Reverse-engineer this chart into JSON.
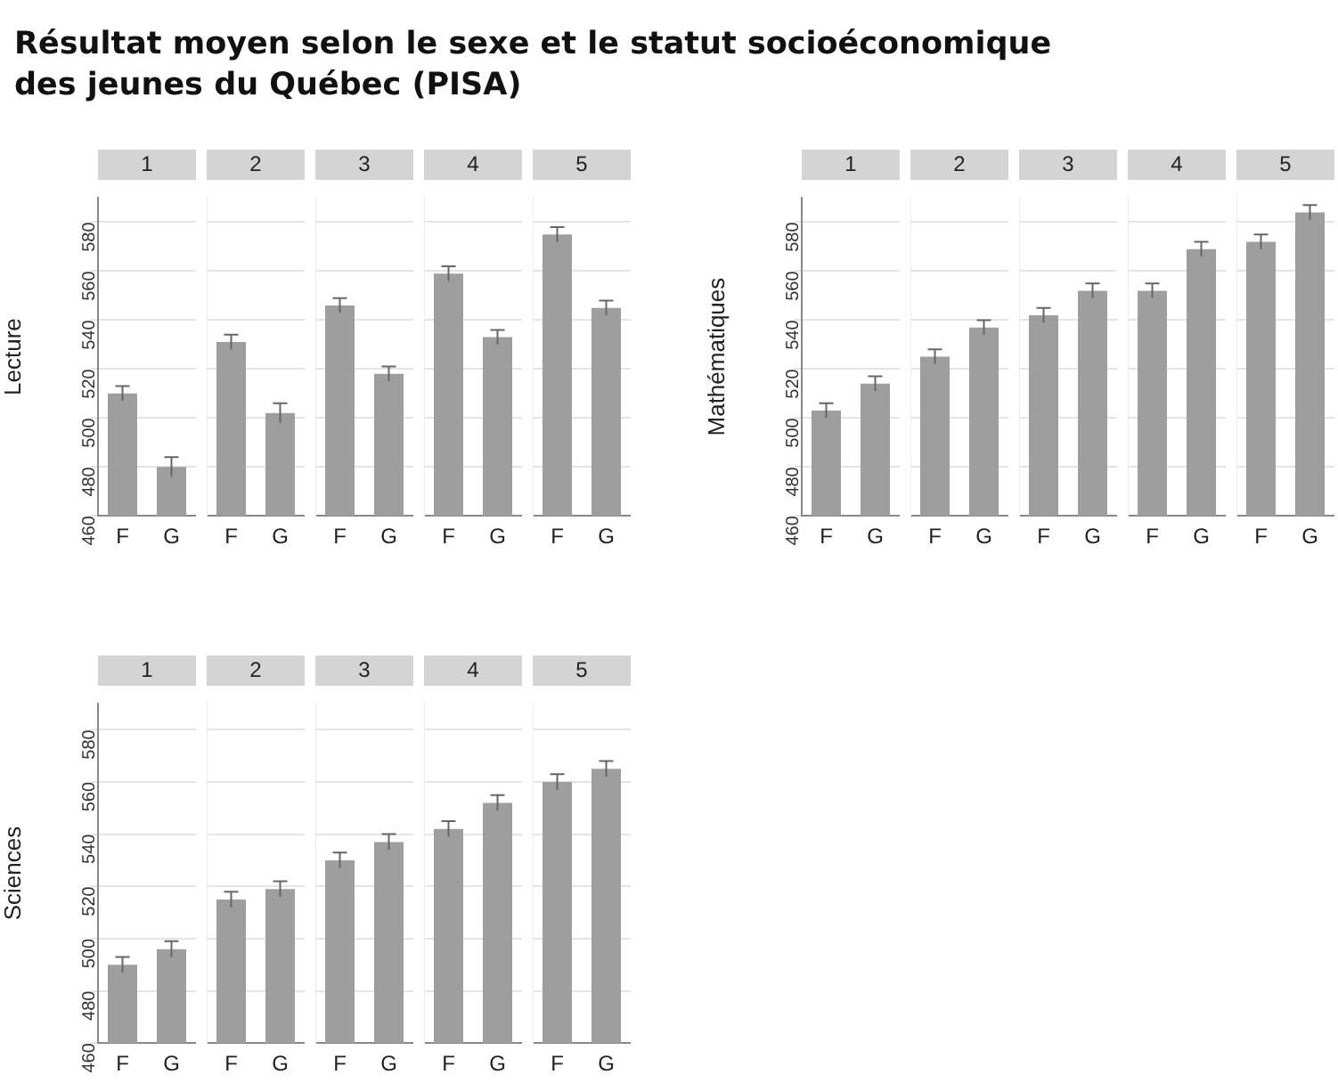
{
  "chart_data": [
    {
      "type": "other",
      "title": "Résultat moyen selon le sexe et le statut socioéconomique des jeunes du Québec (PISA)"
    },
    {
      "type": "bar",
      "title": "1",
      "ylabel": "Lecture",
      "categories": [
        "F",
        "G"
      ],
      "values": [
        510,
        480
      ],
      "errors": [
        3,
        4
      ],
      "color": "#9e9e9e",
      "ylim": [
        460,
        590
      ],
      "yticks": [
        460,
        480,
        500,
        520,
        540,
        560,
        580
      ],
      "grid": "y"
    },
    {
      "type": "bar",
      "title": "2",
      "categories": [
        "F",
        "G"
      ],
      "values": [
        531,
        502
      ],
      "errors": [
        3,
        4
      ],
      "color": "#9e9e9e",
      "ylim": [
        460,
        590
      ],
      "yticks": [
        460,
        480,
        500,
        520,
        540,
        560,
        580
      ],
      "grid": "y",
      "tick_labels": "x"
    },
    {
      "type": "bar",
      "title": "3",
      "categories": [
        "F",
        "G"
      ],
      "values": [
        546,
        518
      ],
      "errors": [
        3,
        3
      ],
      "color": "#9e9e9e",
      "ylim": [
        460,
        590
      ],
      "yticks": [
        460,
        480,
        500,
        520,
        540,
        560,
        580
      ],
      "grid": "y",
      "tick_labels": "x"
    },
    {
      "type": "bar",
      "title": "4",
      "categories": [
        "F",
        "G"
      ],
      "values": [
        559,
        533
      ],
      "errors": [
        3,
        3
      ],
      "color": "#9e9e9e",
      "ylim": [
        460,
        590
      ],
      "yticks": [
        460,
        480,
        500,
        520,
        540,
        560,
        580
      ],
      "grid": "y",
      "tick_labels": "x"
    },
    {
      "type": "bar",
      "title": "5",
      "categories": [
        "F",
        "G"
      ],
      "values": [
        575,
        545
      ],
      "errors": [
        3,
        3
      ],
      "color": "#9e9e9e",
      "ylim": [
        460,
        590
      ],
      "yticks": [
        460,
        480,
        500,
        520,
        540,
        560,
        580
      ],
      "grid": "y",
      "tick_labels": "x"
    },
    {
      "type": "bar",
      "title": "1",
      "ylabel": "Mathématiques",
      "categories": [
        "F",
        "G"
      ],
      "values": [
        503,
        514
      ],
      "errors": [
        3,
        3
      ],
      "color": "#9e9e9e",
      "ylim": [
        460,
        590
      ],
      "yticks": [
        460,
        480,
        500,
        520,
        540,
        560,
        580
      ],
      "grid": "y"
    },
    {
      "type": "bar",
      "title": "2",
      "categories": [
        "F",
        "G"
      ],
      "values": [
        525,
        537
      ],
      "errors": [
        3,
        3
      ],
      "color": "#9e9e9e",
      "ylim": [
        460,
        590
      ],
      "yticks": [
        460,
        480,
        500,
        520,
        540,
        560,
        580
      ],
      "grid": "y",
      "tick_labels": "x"
    },
    {
      "type": "bar",
      "title": "3",
      "categories": [
        "F",
        "G"
      ],
      "values": [
        542,
        552
      ],
      "errors": [
        3,
        3
      ],
      "color": "#9e9e9e",
      "ylim": [
        460,
        590
      ],
      "yticks": [
        460,
        480,
        500,
        520,
        540,
        560,
        580
      ],
      "grid": "y",
      "tick_labels": "x"
    },
    {
      "type": "bar",
      "title": "4",
      "categories": [
        "F",
        "G"
      ],
      "values": [
        552,
        569
      ],
      "errors": [
        3,
        3
      ],
      "color": "#9e9e9e",
      "ylim": [
        460,
        590
      ],
      "yticks": [
        460,
        480,
        500,
        520,
        540,
        560,
        580
      ],
      "grid": "y",
      "tick_labels": "x"
    },
    {
      "type": "bar",
      "title": "5",
      "categories": [
        "F",
        "G"
      ],
      "values": [
        572,
        584
      ],
      "errors": [
        3,
        3
      ],
      "color": "#9e9e9e",
      "ylim": [
        460,
        590
      ],
      "yticks": [
        460,
        480,
        500,
        520,
        540,
        560,
        580
      ],
      "grid": "y",
      "tick_labels": "x"
    },
    {
      "type": "bar",
      "title": "1",
      "ylabel": "Sciences",
      "categories": [
        "F",
        "G"
      ],
      "values": [
        490,
        496
      ],
      "errors": [
        3,
        3
      ],
      "color": "#9e9e9e",
      "ylim": [
        460,
        590
      ],
      "yticks": [
        460,
        480,
        500,
        520,
        540,
        560,
        580
      ],
      "grid": "y"
    },
    {
      "type": "bar",
      "title": "2",
      "categories": [
        "F",
        "G"
      ],
      "values": [
        515,
        519
      ],
      "errors": [
        3,
        3
      ],
      "color": "#9e9e9e",
      "ylim": [
        460,
        590
      ],
      "yticks": [
        460,
        480,
        500,
        520,
        540,
        560,
        580
      ],
      "grid": "y",
      "tick_labels": "x"
    },
    {
      "type": "bar",
      "title": "3",
      "categories": [
        "F",
        "G"
      ],
      "values": [
        530,
        537
      ],
      "errors": [
        3,
        3
      ],
      "color": "#9e9e9e",
      "ylim": [
        460,
        590
      ],
      "yticks": [
        460,
        480,
        500,
        520,
        540,
        560,
        580
      ],
      "grid": "y",
      "tick_labels": "x"
    },
    {
      "type": "bar",
      "title": "4",
      "categories": [
        "F",
        "G"
      ],
      "values": [
        542,
        552
      ],
      "errors": [
        3,
        3
      ],
      "color": "#9e9e9e",
      "ylim": [
        460,
        590
      ],
      "yticks": [
        460,
        480,
        500,
        520,
        540,
        560,
        580
      ],
      "grid": "y",
      "tick_labels": "x"
    },
    {
      "type": "bar",
      "title": "5",
      "categories": [
        "F",
        "G"
      ],
      "values": [
        560,
        565
      ],
      "errors": [
        3,
        3
      ],
      "color": "#9e9e9e",
      "ylim": [
        460,
        590
      ],
      "yticks": [
        460,
        480,
        500,
        520,
        540,
        560,
        580
      ],
      "grid": "y",
      "tick_labels": "x"
    }
  ]
}
